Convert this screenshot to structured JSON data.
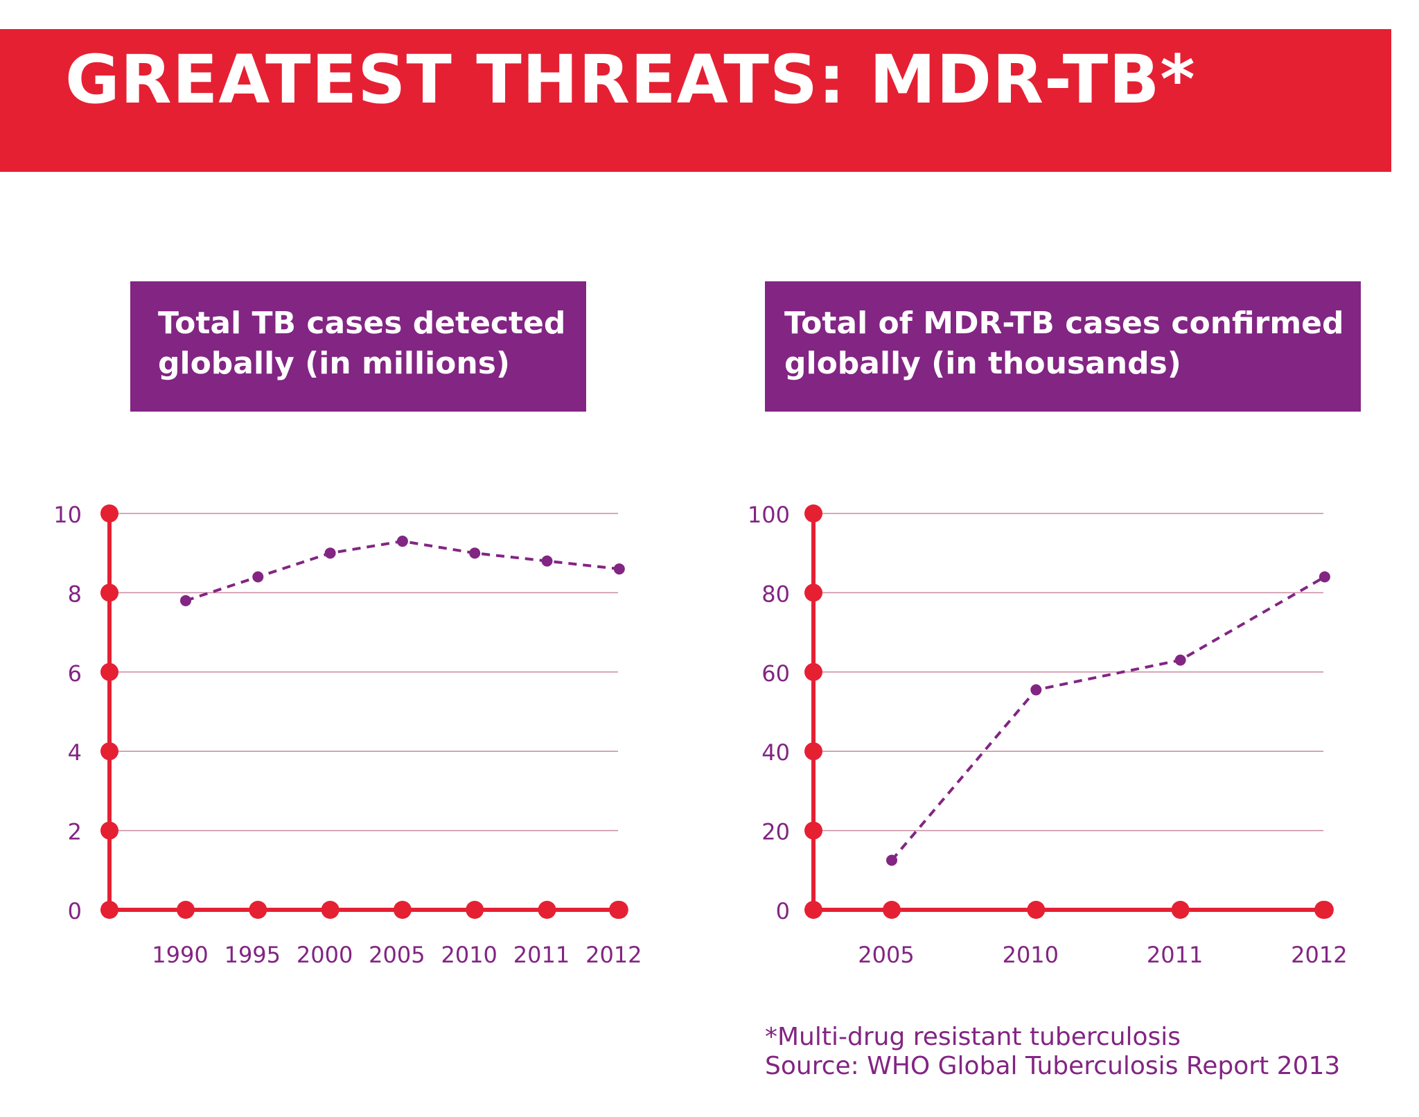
{
  "header": {
    "title": "GREATEST THREATS: MDR-TB*"
  },
  "colors": {
    "banner": "#e52033",
    "axis": "#e52033",
    "series": "#822583",
    "title_box": "#822583",
    "grid": "#c88aa0"
  },
  "chart_data": [
    {
      "type": "line",
      "title": "Total TB cases detected\nglobally (in millions)",
      "categories": [
        "1990",
        "1995",
        "2000",
        "2005",
        "2010",
        "2011",
        "2012"
      ],
      "values": [
        7.8,
        8.4,
        9.0,
        9.3,
        9.0,
        8.8,
        8.6
      ],
      "yticks": [
        "0",
        "2",
        "4",
        "6",
        "8",
        "10"
      ],
      "ylim": [
        0,
        10
      ],
      "grid": true,
      "line_style": "dashed"
    },
    {
      "type": "line",
      "title": "Total of MDR-TB cases confirmed\nglobally (in thousands)",
      "categories": [
        "2005",
        "2010",
        "2011",
        "2012"
      ],
      "values": [
        12.5,
        55.5,
        63,
        84
      ],
      "yticks": [
        "0",
        "20",
        "40",
        "60",
        "80",
        "100"
      ],
      "ylim": [
        0,
        100
      ],
      "grid": true,
      "line_style": "dashed"
    }
  ],
  "footnote": {
    "definition": "*Multi-drug resistant tuberculosis",
    "source": "Source: WHO Global Tuberculosis Report 2013"
  }
}
